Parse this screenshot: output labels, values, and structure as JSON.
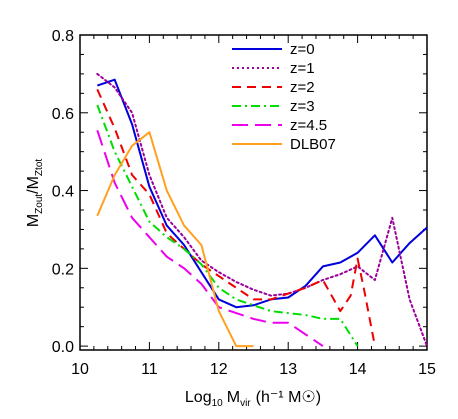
{
  "chart_data": {
    "type": "line",
    "xlabel": {
      "base": "Log",
      "base_sub": "10",
      "symbol": "M",
      "symbol_sub": "vir",
      "units": "(h⁻¹ M☉)"
    },
    "ylabel": {
      "num": "M",
      "num_sub": "Zout",
      "den": "M",
      "den_sub": "Ztot"
    },
    "xlim": [
      10,
      15
    ],
    "ylim": [
      -0.01,
      0.8
    ],
    "xticks": [
      10,
      11,
      12,
      13,
      14,
      15
    ],
    "xtick_labels": [
      "10",
      "11",
      "12",
      "13",
      "14",
      "15"
    ],
    "yticks": [
      0.0,
      0.2,
      0.4,
      0.6,
      0.8
    ],
    "ytick_labels": [
      "0.0",
      "0.2",
      "0.4",
      "0.6",
      "0.8"
    ],
    "grid": false,
    "legend_position": "top-right",
    "series": [
      {
        "name": "z=0",
        "color": "#0000dd",
        "dash": "solid",
        "x": [
          10.25,
          10.5,
          10.75,
          11.0,
          11.25,
          11.5,
          11.75,
          12.0,
          12.25,
          12.5,
          12.75,
          13.0,
          13.25,
          13.5,
          13.75,
          14.0,
          14.25,
          14.5,
          14.75,
          15.0
        ],
        "y": [
          0.67,
          0.685,
          0.57,
          0.41,
          0.31,
          0.26,
          0.19,
          0.12,
          0.1,
          0.105,
          0.12,
          0.125,
          0.155,
          0.205,
          0.215,
          0.24,
          0.285,
          0.215,
          0.265,
          0.305
        ]
      },
      {
        "name": "z=1",
        "color": "#9b009b",
        "dash": "dotted",
        "x": [
          10.25,
          10.5,
          10.75,
          11.0,
          11.25,
          11.5,
          11.75,
          12.0,
          12.25,
          12.5,
          12.75,
          13.0,
          13.25,
          13.5,
          13.75,
          14.0,
          14.25,
          14.5,
          14.75,
          15.0
        ],
        "y": [
          0.7,
          0.665,
          0.6,
          0.44,
          0.33,
          0.28,
          0.22,
          0.19,
          0.165,
          0.145,
          0.13,
          0.135,
          0.15,
          0.17,
          0.185,
          0.205,
          0.17,
          0.33,
          0.12,
          0.0
        ]
      },
      {
        "name": "z=2",
        "color": "#ee0000",
        "dash": "dashed",
        "x": [
          10.25,
          10.5,
          10.75,
          11.0,
          11.25,
          11.5,
          11.75,
          12.0,
          12.25,
          12.5,
          12.75,
          13.0,
          13.25,
          13.5,
          13.75,
          13.9,
          14.0,
          14.1,
          14.25
        ],
        "y": [
          0.66,
          0.56,
          0.44,
          0.39,
          0.29,
          0.25,
          0.21,
          0.18,
          0.15,
          0.12,
          0.12,
          0.135,
          0.15,
          0.17,
          0.09,
          0.13,
          0.225,
          0.14,
          0.0
        ]
      },
      {
        "name": "z=3",
        "color": "#00dd00",
        "dash": "dashdot",
        "x": [
          10.25,
          10.5,
          10.75,
          11.0,
          11.25,
          11.5,
          11.75,
          12.0,
          12.25,
          12.5,
          12.75,
          13.0,
          13.25,
          13.5,
          13.75,
          14.0
        ],
        "y": [
          0.62,
          0.5,
          0.41,
          0.32,
          0.28,
          0.25,
          0.21,
          0.15,
          0.12,
          0.105,
          0.09,
          0.085,
          0.08,
          0.07,
          0.07,
          0.0
        ]
      },
      {
        "name": "z=4.5",
        "color": "#ee00ee",
        "dash": "longdash",
        "x": [
          10.25,
          10.5,
          10.75,
          11.0,
          11.25,
          11.5,
          11.75,
          12.0,
          12.25,
          12.5,
          12.75,
          13.0,
          13.25,
          13.5
        ],
        "y": [
          0.555,
          0.42,
          0.33,
          0.28,
          0.23,
          0.2,
          0.16,
          0.1,
          0.085,
          0.07,
          0.06,
          0.06,
          0.03,
          0.0
        ]
      },
      {
        "name": "DLB07",
        "color": "#ffa020",
        "dash": "solid",
        "x": [
          10.25,
          10.5,
          10.75,
          11.0,
          11.25,
          11.5,
          11.75,
          12.0,
          12.25,
          12.5
        ],
        "y": [
          0.335,
          0.44,
          0.515,
          0.55,
          0.4,
          0.31,
          0.26,
          0.09,
          0.0,
          0.0
        ]
      }
    ]
  }
}
